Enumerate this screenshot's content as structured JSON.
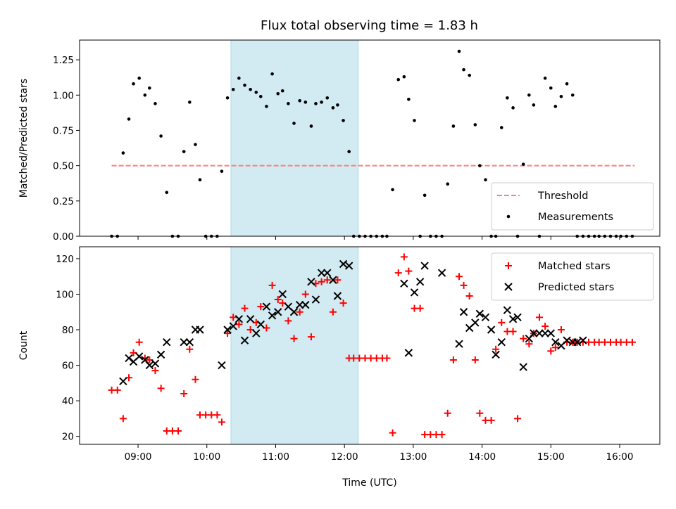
{
  "figure": {
    "title": "Flux total observing time = 1.83 h"
  },
  "chart_data": [
    {
      "id": "ratio",
      "type": "scatter",
      "title": "Flux total observing time = 1.83 h",
      "xlabel": "",
      "ylabel": "Matched/Predicted stars",
      "xlim": [
        "08:09",
        "16:35"
      ],
      "ylim": [
        0,
        1.39
      ],
      "yticks": [
        0.0,
        0.25,
        0.5,
        0.75,
        1.0,
        1.25
      ],
      "ytick_labels": [
        "0.00",
        "0.25",
        "0.50",
        "0.75",
        "1.00",
        "1.25"
      ],
      "xticks": [
        "09:00",
        "10:00",
        "11:00",
        "12:00",
        "13:00",
        "14:00",
        "15:00",
        "16:00"
      ],
      "shaded_span": {
        "start": "10:21",
        "end": "12:12",
        "color": "#add8e6"
      },
      "legend": {
        "location": "lower right",
        "entries": [
          "Threshold",
          "Measurements"
        ]
      },
      "series": [
        {
          "name": "Threshold",
          "style": "dashed-line",
          "color": "#ff7f7f",
          "x": [
            "08:37",
            "16:13"
          ],
          "y": [
            0.5,
            0.5
          ]
        },
        {
          "name": "Measurements",
          "style": "dot",
          "color": "#000000",
          "x": [
            "08:37",
            "08:42",
            "08:47",
            "08:52",
            "08:56",
            "09:01",
            "09:06",
            "09:10",
            "09:15",
            "09:20",
            "09:25",
            "09:30",
            "09:35",
            "09:40",
            "09:45",
            "09:50",
            "09:54",
            "09:59",
            "10:04",
            "10:09",
            "10:13",
            "10:18",
            "10:23",
            "10:28",
            "10:33",
            "10:38",
            "10:43",
            "10:47",
            "10:52",
            "10:57",
            "11:02",
            "11:06",
            "11:11",
            "11:16",
            "11:21",
            "11:26",
            "11:31",
            "11:35",
            "11:40",
            "11:45",
            "11:50",
            "11:54",
            "11:59",
            "12:04",
            "12:08",
            "12:13",
            "12:18",
            "12:23",
            "12:28",
            "12:33",
            "12:37",
            "12:42",
            "12:47",
            "12:52",
            "12:56",
            "13:01",
            "13:06",
            "13:10",
            "13:15",
            "13:20",
            "13:25",
            "13:30",
            "13:35",
            "13:40",
            "13:44",
            "13:49",
            "13:54",
            "13:58",
            "14:03",
            "14:08",
            "14:12",
            "14:17",
            "14:22",
            "14:27",
            "14:31",
            "14:36",
            "14:41",
            "14:45",
            "14:50",
            "14:55",
            "15:00",
            "15:04",
            "15:09",
            "15:14",
            "15:19",
            "15:23",
            "15:28",
            "15:33",
            "15:38",
            "15:42",
            "15:47",
            "15:52",
            "15:57",
            "16:01",
            "16:06",
            "16:11"
          ],
          "y": [
            0.0,
            0.0,
            0.59,
            0.83,
            1.08,
            1.12,
            1.0,
            1.05,
            0.94,
            0.71,
            0.31,
            0.0,
            0.0,
            0.6,
            0.95,
            0.65,
            0.4,
            0.0,
            0.0,
            0.0,
            0.46,
            0.98,
            1.04,
            1.12,
            1.07,
            1.04,
            1.02,
            0.99,
            0.92,
            1.15,
            1.01,
            1.03,
            0.94,
            0.8,
            0.96,
            0.95,
            0.78,
            0.94,
            0.95,
            0.98,
            0.91,
            0.93,
            0.82,
            0.6,
            0.0,
            0.0,
            0.0,
            0.0,
            0.0,
            0.0,
            0.0,
            0.33,
            1.11,
            1.13,
            0.97,
            0.82,
            0.0,
            0.29,
            0.0,
            0.0,
            0.0,
            0.37,
            0.78,
            1.31,
            1.18,
            1.14,
            0.79,
            0.5,
            0.4,
            0.0,
            0.0,
            0.77,
            0.98,
            0.91,
            0.0,
            0.51,
            1.0,
            0.93,
            0.0,
            1.12,
            1.05,
            0.92,
            0.99,
            1.08,
            1.0,
            0.0,
            0.0,
            0.0,
            0.0,
            0.0,
            0.0,
            0.0,
            0.0,
            0.0,
            0.0,
            0.0
          ]
        }
      ]
    },
    {
      "id": "counts",
      "type": "scatter",
      "title": "",
      "xlabel": "Time (UTC)",
      "ylabel": "Count",
      "xlim": [
        "08:09",
        "16:35"
      ],
      "ylim": [
        15.5,
        126.7
      ],
      "yticks": [
        20,
        40,
        60,
        80,
        100,
        120
      ],
      "ytick_labels": [
        "20",
        "40",
        "60",
        "80",
        "100",
        "120"
      ],
      "xticks": [
        "09:00",
        "10:00",
        "11:00",
        "12:00",
        "13:00",
        "14:00",
        "15:00",
        "16:00"
      ],
      "shaded_span": {
        "start": "10:21",
        "end": "12:12",
        "color": "#add8e6"
      },
      "legend": {
        "location": "upper right",
        "entries": [
          "Matched stars",
          "Predicted stars"
        ]
      },
      "series": [
        {
          "name": "Matched stars",
          "style": "plus",
          "color": "#ff0000",
          "x": [
            "08:37",
            "08:42",
            "08:47",
            "08:52",
            "08:56",
            "09:01",
            "09:06",
            "09:10",
            "09:15",
            "09:20",
            "09:25",
            "09:30",
            "09:35",
            "09:40",
            "09:45",
            "09:50",
            "09:54",
            "09:59",
            "10:04",
            "10:09",
            "10:13",
            "10:18",
            "10:23",
            "10:28",
            "10:33",
            "10:38",
            "10:43",
            "10:47",
            "10:52",
            "10:57",
            "11:02",
            "11:06",
            "11:11",
            "11:16",
            "11:21",
            "11:26",
            "11:31",
            "11:35",
            "11:40",
            "11:45",
            "11:50",
            "11:54",
            "11:59",
            "12:04",
            "12:08",
            "12:13",
            "12:18",
            "12:23",
            "12:28",
            "12:33",
            "12:37",
            "12:42",
            "12:47",
            "12:52",
            "12:56",
            "13:01",
            "13:06",
            "13:10",
            "13:15",
            "13:20",
            "13:25",
            "13:30",
            "13:35",
            "13:40",
            "13:44",
            "13:49",
            "13:54",
            "13:58",
            "14:03",
            "14:08",
            "14:12",
            "14:17",
            "14:22",
            "14:27",
            "14:31",
            "14:36",
            "14:41",
            "14:45",
            "14:50",
            "14:55",
            "15:00",
            "15:04",
            "15:09",
            "15:14",
            "15:19",
            "15:23",
            "15:28",
            "15:33",
            "15:38",
            "15:42",
            "15:47",
            "15:52",
            "15:57",
            "16:01",
            "16:06",
            "16:11"
          ],
          "y": [
            46,
            46,
            30,
            53,
            67,
            73,
            64,
            63,
            57,
            47,
            23,
            23,
            23,
            44,
            69,
            52,
            32,
            32,
            32,
            32,
            28,
            78,
            87,
            83,
            92,
            80,
            84,
            93,
            81,
            105,
            97,
            95,
            85,
            75,
            90,
            100,
            76,
            106,
            107,
            108,
            90,
            108,
            95,
            64,
            64,
            64,
            64,
            64,
            64,
            64,
            64,
            22,
            112,
            121,
            113,
            92,
            92,
            21,
            21,
            21,
            21,
            33,
            63,
            110,
            105,
            99,
            63,
            33,
            29,
            29,
            69,
            84,
            79,
            79,
            30,
            75,
            72,
            78,
            87,
            82,
            68,
            70,
            80,
            73,
            73,
            73,
            73,
            73,
            73,
            73,
            73,
            73,
            73,
            73,
            73,
            73
          ]
        },
        {
          "name": "Predicted stars",
          "style": "x",
          "color": "#000000",
          "x": [
            "08:47",
            "08:52",
            "08:56",
            "09:01",
            "09:06",
            "09:10",
            "09:15",
            "09:20",
            "09:25",
            "09:40",
            "09:45",
            "09:50",
            "09:54",
            "10:13",
            "10:18",
            "10:23",
            "10:28",
            "10:33",
            "10:38",
            "10:43",
            "10:47",
            "10:52",
            "10:57",
            "11:02",
            "11:06",
            "11:11",
            "11:16",
            "11:21",
            "11:26",
            "11:31",
            "11:35",
            "11:40",
            "11:45",
            "11:50",
            "11:54",
            "11:59",
            "12:04",
            "12:52",
            "12:56",
            "13:01",
            "13:06",
            "13:10",
            "13:25",
            "13:40",
            "13:44",
            "13:49",
            "13:54",
            "13:58",
            "14:03",
            "14:08",
            "14:12",
            "14:17",
            "14:22",
            "14:27",
            "14:31",
            "14:36",
            "14:41",
            "14:45",
            "14:50",
            "14:55",
            "15:00",
            "15:04",
            "15:09",
            "15:14",
            "15:19",
            "15:23",
            "15:28"
          ],
          "y": [
            51,
            64,
            62,
            65,
            63,
            60,
            61,
            66,
            73,
            73,
            73,
            80,
            80,
            60,
            80,
            82,
            86,
            74,
            86,
            78,
            83,
            93,
            88,
            90,
            100,
            93,
            90,
            94,
            94,
            107,
            97,
            112,
            112,
            108,
            99,
            117,
            116,
            106,
            67,
            101,
            107,
            116,
            112,
            72,
            90,
            81,
            84,
            89,
            87,
            80,
            66,
            73,
            91,
            86,
            87,
            59,
            75,
            78,
            78,
            78,
            78,
            73,
            71,
            74,
            73,
            73,
            74
          ]
        }
      ]
    }
  ]
}
